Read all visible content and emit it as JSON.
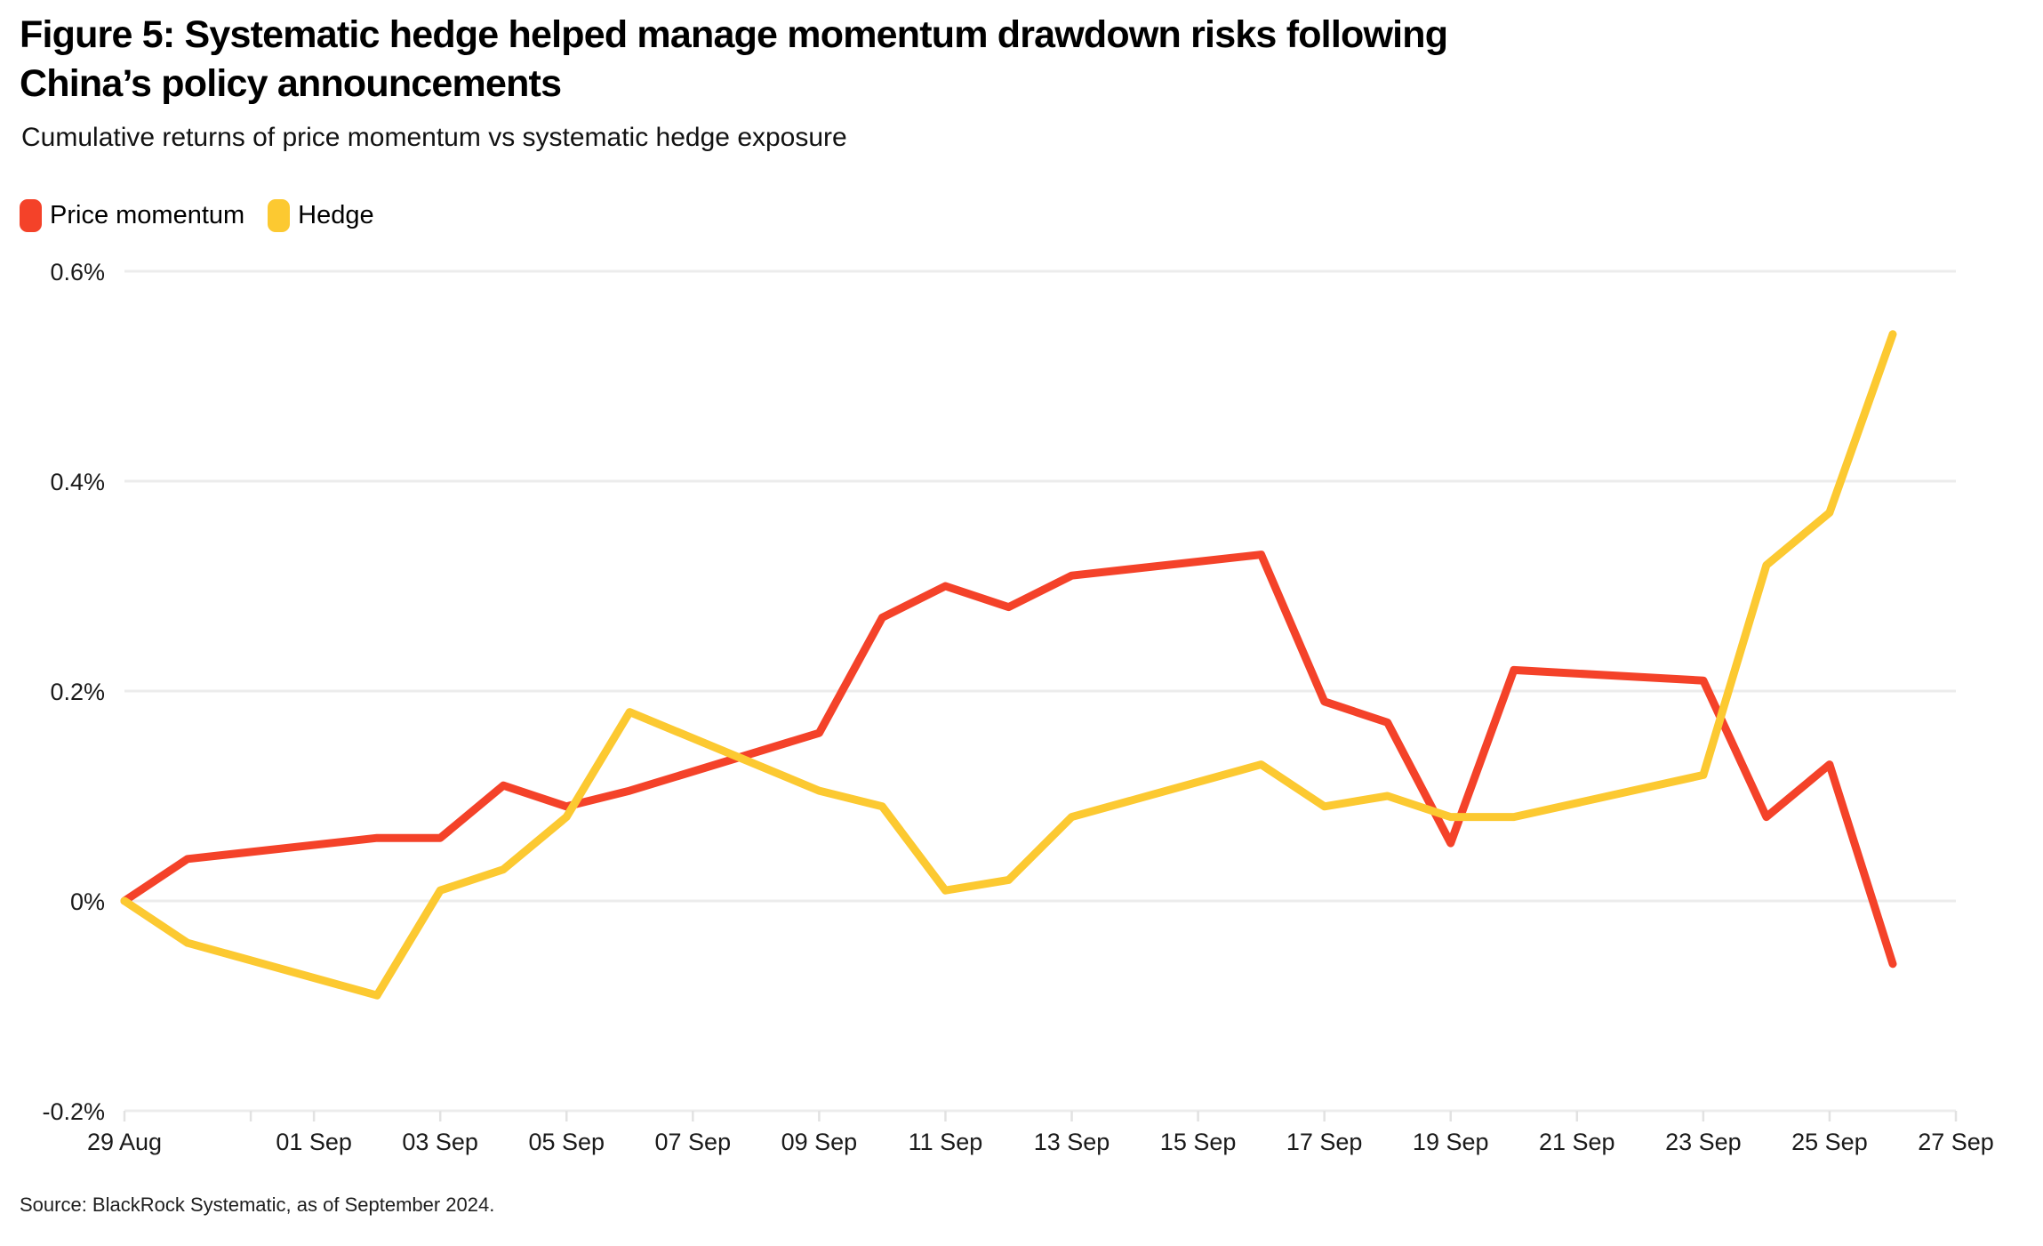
{
  "title_line1": "Figure 5: Systematic hedge helped manage momentum drawdown risks following",
  "title_line2": "China’s policy announcements",
  "subtitle": "Cumulative returns of price momentum vs systematic hedge exposure",
  "source": "Source: BlackRock Systematic, as of September 2024.",
  "legend": {
    "items": [
      {
        "label": "Price momentum",
        "color": "#F44229"
      },
      {
        "label": "Hedge",
        "color": "#FCC931"
      }
    ]
  },
  "chart_data": {
    "type": "line",
    "title": "Figure 5: Systematic hedge helped manage momentum drawdown risks following China’s policy announcements",
    "subtitle": "Cumulative returns of price momentum vs systematic hedge exposure",
    "legend_position": "top-left",
    "grid": true,
    "x_axis": {
      "label": "",
      "range_days": [
        0,
        29
      ],
      "tick_label_days": [
        0,
        3,
        5,
        7,
        9,
        11,
        13,
        15,
        17,
        19,
        21,
        23,
        25,
        27,
        29
      ],
      "tick_labels": [
        "29 Aug",
        "01 Sep",
        "03 Sep",
        "05 Sep",
        "07 Sep",
        "09 Sep",
        "11 Sep",
        "13 Sep",
        "15 Sep",
        "17 Sep",
        "19 Sep",
        "21 Sep",
        "23 Sep",
        "25 Sep",
        "27 Sep"
      ],
      "minor_tick_days": [
        2
      ]
    },
    "y_axis": {
      "label": "",
      "ylim": [
        -0.2,
        0.6
      ],
      "unit": "%",
      "ticks": [
        0.6,
        0.4,
        0.2,
        0,
        -0.2
      ],
      "tick_labels": [
        "0.6%",
        "0.4%",
        "0.2%",
        "0%",
        "-0.2%"
      ]
    },
    "series": [
      {
        "name": "Price momentum",
        "color": "#F44229",
        "dates": [
          "29 Aug",
          "30 Aug",
          "02 Sep",
          "03 Sep",
          "04 Sep",
          "05 Sep",
          "06 Sep",
          "09 Sep",
          "10 Sep",
          "11 Sep",
          "12 Sep",
          "13 Sep",
          "16 Sep",
          "17 Sep",
          "18 Sep",
          "19 Sep",
          "20 Sep",
          "23 Sep",
          "24 Sep",
          "25 Sep",
          "26 Sep"
        ],
        "days": [
          0,
          1,
          4,
          5,
          6,
          7,
          8,
          11,
          12,
          13,
          14,
          15,
          18,
          19,
          20,
          21,
          22,
          25,
          26,
          27,
          28
        ],
        "values": [
          0,
          0.04,
          0.06,
          0.06,
          0.11,
          0.09,
          0.105,
          0.16,
          0.27,
          0.3,
          0.28,
          0.31,
          0.33,
          0.19,
          0.17,
          0.055,
          0.22,
          0.21,
          0.08,
          0.13,
          -0.06
        ]
      },
      {
        "name": "Hedge",
        "color": "#FCC931",
        "dates": [
          "29 Aug",
          "30 Aug",
          "02 Sep",
          "03 Sep",
          "04 Sep",
          "05 Sep",
          "06 Sep",
          "09 Sep",
          "10 Sep",
          "11 Sep",
          "12 Sep",
          "13 Sep",
          "16 Sep",
          "17 Sep",
          "18 Sep",
          "19 Sep",
          "20 Sep",
          "23 Sep",
          "24 Sep",
          "25 Sep",
          "26 Sep"
        ],
        "days": [
          0,
          1,
          4,
          5,
          6,
          7,
          8,
          11,
          12,
          13,
          14,
          15,
          18,
          19,
          20,
          21,
          22,
          25,
          26,
          27,
          28
        ],
        "values": [
          0,
          -0.04,
          -0.09,
          0.01,
          0.03,
          0.08,
          0.18,
          0.105,
          0.09,
          0.01,
          0.02,
          0.08,
          0.13,
          0.09,
          0.1,
          0.08,
          0.08,
          0.12,
          0.32,
          0.37,
          0.54
        ]
      }
    ],
    "style": {
      "gridline_color": "#ECECEC",
      "tick_color": "#E2E2E2",
      "axis_label_color": "#1A1A1A",
      "line_width": 9
    }
  }
}
